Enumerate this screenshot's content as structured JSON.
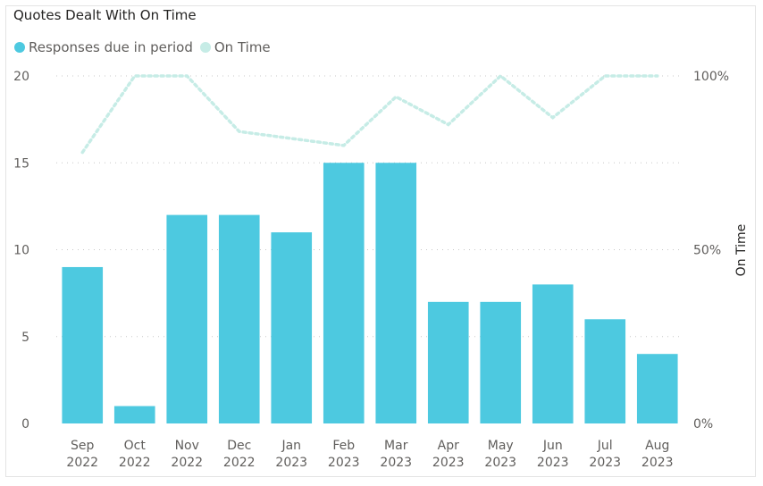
{
  "chart_data": {
    "type": "bar",
    "title": "Quotes Dealt With On Time",
    "categories": [
      "Sep 2022",
      "Oct 2022",
      "Nov 2022",
      "Dec 2022",
      "Jan 2023",
      "Feb 2023",
      "Mar 2023",
      "Apr 2023",
      "May 2023",
      "Jun 2023",
      "Jul 2023",
      "Aug 2023"
    ],
    "category_lines": [
      [
        "Sep",
        "2022"
      ],
      [
        "Oct",
        "2022"
      ],
      [
        "Nov",
        "2022"
      ],
      [
        "Dec",
        "2022"
      ],
      [
        "Jan",
        "2023"
      ],
      [
        "Feb",
        "2023"
      ],
      [
        "Mar",
        "2023"
      ],
      [
        "Apr",
        "2023"
      ],
      [
        "May",
        "2023"
      ],
      [
        "Jun",
        "2023"
      ],
      [
        "Jul",
        "2023"
      ],
      [
        "Aug",
        "2023"
      ]
    ],
    "series": [
      {
        "name": "Responses due in period",
        "type": "bar",
        "axis": "left",
        "color": "#4dc9e0",
        "values": [
          9,
          1,
          12,
          12,
          11,
          15,
          15,
          7,
          7,
          8,
          6,
          4
        ]
      },
      {
        "name": "On Time",
        "type": "line",
        "axis": "right",
        "color": "#c6ece6",
        "style": "dotted",
        "values": [
          78,
          100,
          100,
          84,
          82,
          80,
          94,
          86,
          100,
          88,
          100,
          100
        ]
      }
    ],
    "y_left": {
      "ylim": [
        0,
        20
      ],
      "ticks": [
        0,
        5,
        10,
        15,
        20
      ]
    },
    "y_right": {
      "label": "On Time",
      "ylim": [
        0,
        100
      ],
      "ticks": [
        0,
        50,
        100
      ],
      "tick_labels": [
        "0%",
        "50%",
        "100%"
      ]
    },
    "grid": true,
    "legend_position": "top-left"
  }
}
